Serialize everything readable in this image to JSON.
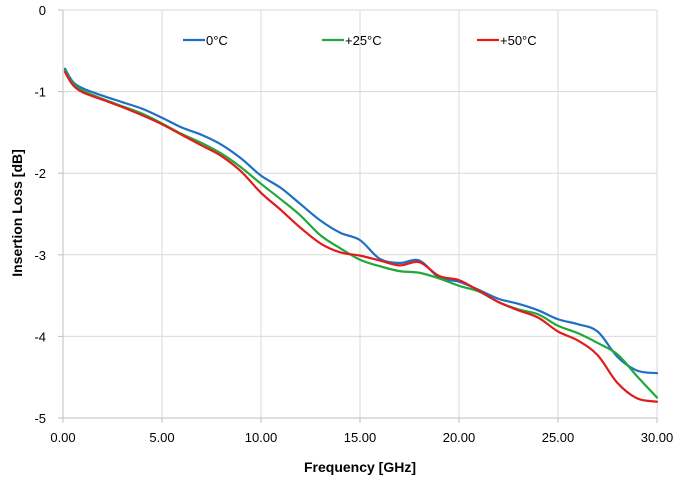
{
  "chart_data": {
    "type": "line",
    "xlabel": "Frequency [GHz]",
    "ylabel": "Insertion Loss [dB]",
    "xlim": [
      0,
      30
    ],
    "ylim": [
      -5,
      0
    ],
    "xticks": [
      0,
      5,
      10,
      15,
      20,
      25,
      30
    ],
    "xtick_labels": [
      "0.00",
      "5.00",
      "10.00",
      "15.00",
      "20.00",
      "25.00",
      "30.00"
    ],
    "yticks": [
      0,
      -1,
      -2,
      -3,
      -4,
      -5
    ],
    "ytick_labels": [
      "0",
      "-1",
      "-2",
      "-3",
      "-4",
      "-5"
    ],
    "grid": true,
    "legend_position": "top",
    "series": [
      {
        "name": "0°C",
        "color": "#1f6fc4",
        "x": [
          0.1,
          0.5,
          1,
          2,
          3,
          4,
          5,
          6,
          7,
          8,
          9,
          10,
          11,
          12,
          13,
          14,
          15,
          16,
          17,
          18,
          19,
          20,
          21,
          22,
          23,
          24,
          25,
          26,
          27,
          28,
          29,
          30
        ],
        "y": [
          -0.72,
          -0.88,
          -0.96,
          -1.05,
          -1.13,
          -1.21,
          -1.32,
          -1.44,
          -1.53,
          -1.65,
          -1.82,
          -2.03,
          -2.18,
          -2.38,
          -2.58,
          -2.73,
          -2.82,
          -3.05,
          -3.1,
          -3.07,
          -3.28,
          -3.33,
          -3.43,
          -3.54,
          -3.6,
          -3.68,
          -3.79,
          -3.85,
          -3.94,
          -4.25,
          -4.42,
          -4.45
        ]
      },
      {
        "name": "+25°C",
        "color": "#22a83a",
        "x": [
          0.1,
          0.5,
          1,
          2,
          3,
          4,
          5,
          6,
          7,
          8,
          9,
          10,
          11,
          12,
          13,
          14,
          15,
          16,
          17,
          18,
          19,
          20,
          21,
          22,
          23,
          24,
          25,
          26,
          27,
          28,
          29,
          30
        ],
        "y": [
          -0.74,
          -0.9,
          -0.99,
          -1.09,
          -1.18,
          -1.27,
          -1.39,
          -1.52,
          -1.63,
          -1.76,
          -1.93,
          -2.13,
          -2.32,
          -2.52,
          -2.76,
          -2.92,
          -3.06,
          -3.14,
          -3.2,
          -3.22,
          -3.29,
          -3.38,
          -3.45,
          -3.58,
          -3.67,
          -3.73,
          -3.87,
          -3.96,
          -4.08,
          -4.22,
          -4.49,
          -4.75
        ]
      },
      {
        "name": "+50°C",
        "color": "#e21b1b",
        "x": [
          0.1,
          0.5,
          1,
          2,
          3,
          4,
          5,
          6,
          7,
          8,
          9,
          10,
          11,
          12,
          13,
          14,
          15,
          16,
          17,
          18,
          19,
          20,
          21,
          22,
          23,
          24,
          25,
          26,
          27,
          28,
          29,
          30
        ],
        "y": [
          -0.76,
          -0.92,
          -1.01,
          -1.1,
          -1.19,
          -1.29,
          -1.4,
          -1.53,
          -1.66,
          -1.79,
          -1.98,
          -2.24,
          -2.45,
          -2.67,
          -2.86,
          -2.97,
          -3.01,
          -3.07,
          -3.13,
          -3.09,
          -3.26,
          -3.31,
          -3.44,
          -3.58,
          -3.68,
          -3.77,
          -3.94,
          -4.05,
          -4.23,
          -4.57,
          -4.76,
          -4.8
        ]
      }
    ]
  }
}
